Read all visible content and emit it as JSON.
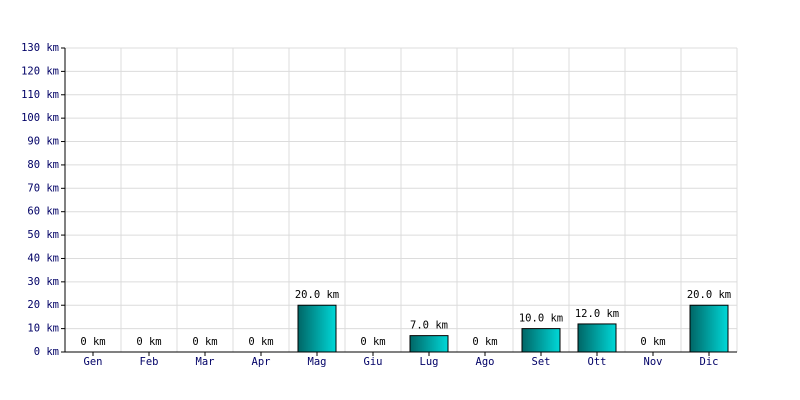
{
  "chart_data": {
    "type": "bar",
    "categories": [
      "Gen",
      "Feb",
      "Mar",
      "Apr",
      "Mag",
      "Giu",
      "Lug",
      "Ago",
      "Set",
      "Ott",
      "Nov",
      "Dic"
    ],
    "values": [
      0,
      0,
      0,
      0,
      20,
      0,
      7,
      0,
      10,
      12,
      0,
      20
    ],
    "value_labels": [
      "0 km",
      "0 km",
      "0 km",
      "0 km",
      "20.0 km",
      "0 km",
      "7.0 km",
      "0 km",
      "10.0 km",
      "12.0 km",
      "0 km",
      "20.0 km"
    ],
    "color": "#00d8d8",
    "ylim": [
      0,
      130
    ],
    "yticks": [
      {
        "value": 0,
        "label": "0 km"
      },
      {
        "value": 10,
        "label": "10 km"
      },
      {
        "value": 20,
        "label": "20 km"
      },
      {
        "value": 30,
        "label": "30 km"
      },
      {
        "value": 40,
        "label": "40 km"
      },
      {
        "value": 50,
        "label": "50 km"
      },
      {
        "value": 60,
        "label": "60 km"
      },
      {
        "value": 70,
        "label": "70 km"
      },
      {
        "value": 80,
        "label": "80 km"
      },
      {
        "value": 90,
        "label": "90 km"
      },
      {
        "value": 100,
        "label": "100 km"
      },
      {
        "value": 110,
        "label": "110 km"
      },
      {
        "value": 120,
        "label": "120 km"
      },
      {
        "value": 130,
        "label": "130 km"
      }
    ],
    "grid": true
  }
}
